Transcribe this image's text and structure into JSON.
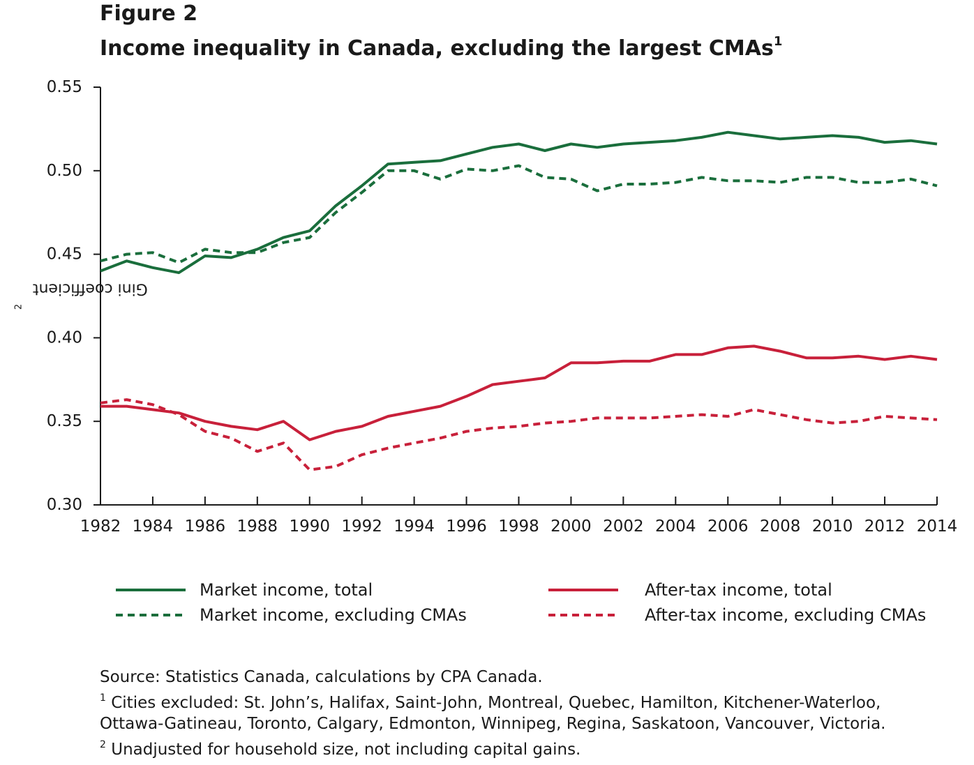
{
  "figure_label": "Figure 2",
  "title": "Income inequality in Canada, excluding the largest CMAs",
  "title_superscript": "1",
  "colors": {
    "green": "#1a6e3c",
    "red": "#c8203a",
    "axis": "#1a1a1a"
  },
  "chart_data": {
    "type": "line",
    "title": "Income inequality in Canada, excluding the largest CMAs",
    "xlabel": "",
    "ylabel": "Gini coefficient",
    "ylabel_superscript": "2",
    "xlim": [
      1982,
      2014
    ],
    "ylim": [
      0.3,
      0.55
    ],
    "grid": false,
    "legend_placement": "bottom",
    "x": [
      1982,
      1983,
      1984,
      1985,
      1986,
      1987,
      1988,
      1989,
      1990,
      1991,
      1992,
      1993,
      1994,
      1995,
      1996,
      1997,
      1998,
      1999,
      2000,
      2001,
      2002,
      2003,
      2004,
      2005,
      2006,
      2007,
      2008,
      2009,
      2010,
      2011,
      2012,
      2013,
      2014
    ],
    "x_ticks": [
      "1982",
      "1984",
      "1986",
      "1988",
      "1990",
      "1992",
      "1994",
      "1996",
      "1998",
      "2000",
      "2002",
      "2004",
      "2006",
      "2008",
      "2010",
      "2012",
      "2014"
    ],
    "y_ticks": [
      "0.30",
      "0.35",
      "0.40",
      "0.45",
      "0.50",
      "0.55"
    ],
    "series": [
      {
        "name": "Market income, total",
        "color": "#1a6e3c",
        "style": "solid",
        "values": [
          0.44,
          0.446,
          0.442,
          0.439,
          0.449,
          0.448,
          0.453,
          0.46,
          0.464,
          0.479,
          0.491,
          0.504,
          0.505,
          0.506,
          0.51,
          0.514,
          0.516,
          0.512,
          0.516,
          0.514,
          0.516,
          0.517,
          0.518,
          0.52,
          0.523,
          0.521,
          0.519,
          0.52,
          0.521,
          0.52,
          0.517,
          0.518,
          0.516
        ]
      },
      {
        "name": "Market income, excluding CMAs",
        "color": "#1a6e3c",
        "style": "dashed",
        "values": [
          0.446,
          0.45,
          0.451,
          0.445,
          0.453,
          0.451,
          0.451,
          0.457,
          0.46,
          0.475,
          0.487,
          0.5,
          0.5,
          0.495,
          0.501,
          0.5,
          0.503,
          0.496,
          0.495,
          0.488,
          0.492,
          0.492,
          0.493,
          0.496,
          0.494,
          0.494,
          0.493,
          0.496,
          0.496,
          0.493,
          0.493,
          0.495,
          0.491
        ]
      },
      {
        "name": "After-tax income, total",
        "color": "#c8203a",
        "style": "solid",
        "values": [
          0.359,
          0.359,
          0.357,
          0.355,
          0.35,
          0.347,
          0.345,
          0.35,
          0.339,
          0.344,
          0.347,
          0.353,
          0.356,
          0.359,
          0.365,
          0.372,
          0.374,
          0.376,
          0.385,
          0.385,
          0.386,
          0.386,
          0.39,
          0.39,
          0.394,
          0.395,
          0.392,
          0.388,
          0.388,
          0.389,
          0.387,
          0.389,
          0.387
        ]
      },
      {
        "name": "After-tax income, excluding CMAs",
        "color": "#c8203a",
        "style": "dashed",
        "values": [
          0.361,
          0.363,
          0.36,
          0.354,
          0.344,
          0.34,
          0.332,
          0.337,
          0.321,
          0.323,
          0.33,
          0.334,
          0.337,
          0.34,
          0.344,
          0.346,
          0.347,
          0.349,
          0.35,
          0.352,
          0.352,
          0.352,
          0.353,
          0.354,
          0.353,
          0.357,
          0.354,
          0.351,
          0.349,
          0.35,
          0.353,
          0.352,
          0.351
        ]
      }
    ]
  },
  "legend": [
    {
      "label": "Market income, total"
    },
    {
      "label": "Market income, excluding CMAs"
    },
    {
      "label": "After-tax income, total"
    },
    {
      "label": "After-tax income, excluding CMAs"
    }
  ],
  "footnotes": {
    "source": "Source: Statistics Canada, calculations by CPA Canada.",
    "note1_marker": "1",
    "note1_line1": " Cities excluded: St. John’s, Halifax, Saint-John, Montreal, Quebec, Hamilton, Kitchener-Waterloo,",
    "note1_line2": "Ottawa-Gatineau, Toronto, Calgary, Edmonton, Winnipeg, Regina, Saskatoon, Vancouver, Victoria.",
    "note2_marker": "2",
    "note2_text": " Unadjusted for household size, not including capital gains."
  }
}
